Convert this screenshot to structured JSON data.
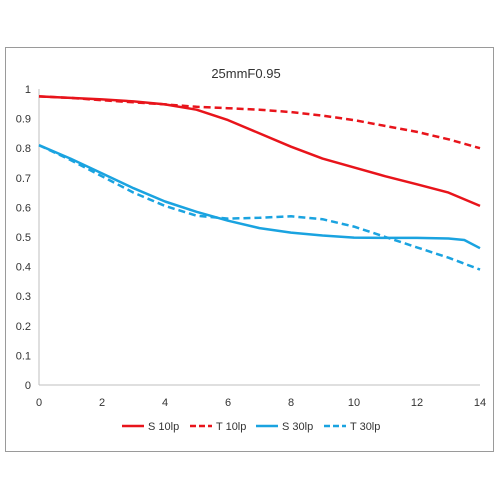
{
  "chart_data": {
    "type": "line",
    "title": "25mmF0.95",
    "xlabel": "",
    "ylabel": "",
    "xlim": [
      0,
      14
    ],
    "ylim": [
      0,
      1
    ],
    "x_ticks": [
      "0",
      "2",
      "4",
      "6",
      "8",
      "10",
      "12",
      "14"
    ],
    "y_ticks": [
      "0",
      "0.1",
      "0.2",
      "0.3",
      "0.4",
      "0.5",
      "0.6",
      "0.7",
      "0.8",
      "0.9",
      "1"
    ],
    "grid": false,
    "legend_position": "bottom",
    "series": [
      {
        "name": "S 10lp",
        "color": "#e8141b",
        "dash": "solid",
        "points": [
          [
            0,
            0.975
          ],
          [
            1,
            0.97
          ],
          [
            2,
            0.965
          ],
          [
            3,
            0.958
          ],
          [
            4,
            0.948
          ],
          [
            5,
            0.93
          ],
          [
            6,
            0.895
          ],
          [
            7,
            0.85
          ],
          [
            8,
            0.805
          ],
          [
            9,
            0.765
          ],
          [
            10,
            0.735
          ],
          [
            11,
            0.705
          ],
          [
            12,
            0.678
          ],
          [
            13,
            0.65
          ],
          [
            14,
            0.605
          ]
        ]
      },
      {
        "name": "T 10lp",
        "color": "#e8141b",
        "dash": "dashed",
        "points": [
          [
            0,
            0.975
          ],
          [
            1,
            0.97
          ],
          [
            2,
            0.962
          ],
          [
            3,
            0.955
          ],
          [
            4,
            0.948
          ],
          [
            5,
            0.94
          ],
          [
            6,
            0.935
          ],
          [
            7,
            0.93
          ],
          [
            8,
            0.922
          ],
          [
            9,
            0.91
          ],
          [
            10,
            0.895
          ],
          [
            11,
            0.875
          ],
          [
            12,
            0.855
          ],
          [
            13,
            0.83
          ],
          [
            14,
            0.8
          ]
        ]
      },
      {
        "name": "S 30lp",
        "color": "#1aa3e0",
        "dash": "solid",
        "points": [
          [
            0,
            0.81
          ],
          [
            1,
            0.765
          ],
          [
            2,
            0.715
          ],
          [
            3,
            0.665
          ],
          [
            4,
            0.62
          ],
          [
            5,
            0.585
          ],
          [
            6,
            0.555
          ],
          [
            7,
            0.53
          ],
          [
            8,
            0.515
          ],
          [
            9,
            0.505
          ],
          [
            10,
            0.498
          ],
          [
            11,
            0.497
          ],
          [
            12,
            0.497
          ],
          [
            13,
            0.495
          ],
          [
            13.5,
            0.49
          ],
          [
            14,
            0.462
          ]
        ]
      },
      {
        "name": "T 30lp",
        "color": "#1aa3e0",
        "dash": "dashed",
        "points": [
          [
            0,
            0.81
          ],
          [
            1,
            0.76
          ],
          [
            2,
            0.705
          ],
          [
            3,
            0.65
          ],
          [
            4,
            0.605
          ],
          [
            5,
            0.572
          ],
          [
            6,
            0.562
          ],
          [
            7,
            0.565
          ],
          [
            8,
            0.57
          ],
          [
            9,
            0.56
          ],
          [
            10,
            0.535
          ],
          [
            11,
            0.5
          ],
          [
            12,
            0.465
          ],
          [
            13,
            0.43
          ],
          [
            14,
            0.39
          ]
        ]
      }
    ]
  }
}
